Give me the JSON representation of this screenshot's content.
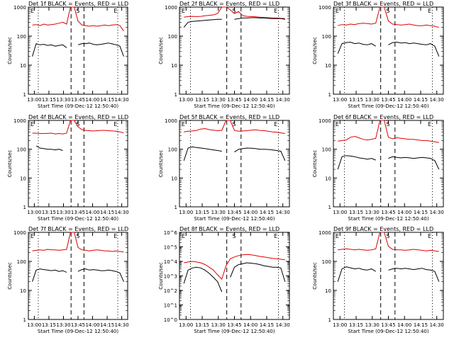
{
  "chart_data": [
    {
      "type": "line",
      "title": "Det 1f BLACK = Events, RED = LLD",
      "xlabel": "Start Time (09-Dec-12 12:50:40)",
      "ylabel": "Counts/sec",
      "yscale": "log",
      "ylim": [
        1,
        1000
      ],
      "yticks": [
        "1",
        "10",
        "100",
        "1000"
      ],
      "xticks": [
        "13:00",
        "13:15",
        "13:30",
        "13:45",
        "14:00",
        "14:15",
        "14:30"
      ],
      "markers": [
        "E",
        "S",
        "E"
      ],
      "series": [
        {
          "name": "LLD",
          "color": "#e00000",
          "values": [
            240,
            250,
            230,
            260,
            240,
            250,
            260,
            280,
            300,
            260,
            1000,
            1000,
            330,
            240,
            230,
            220,
            230,
            220,
            230,
            240,
            230,
            240,
            250,
            230,
            150
          ]
        },
        {
          "name": "Events",
          "color": "#000000",
          "values": [
            20,
            55,
            50,
            52,
            48,
            50,
            45,
            48,
            50,
            40,
            null,
            null,
            50,
            55,
            55,
            58,
            52,
            50,
            52,
            55,
            58,
            54,
            50,
            45,
            20
          ]
        }
      ]
    },
    {
      "type": "line",
      "title": "Det 2f BLACK = Events, RED = LLD",
      "xlabel": "Start Time (09-Dec-12 12:50:40)",
      "ylabel": "Counts/sec",
      "yscale": "log",
      "ylim": [
        1,
        1000
      ],
      "yticks": [
        "1",
        "10",
        "100",
        "1000"
      ],
      "xticks": [
        "13:00",
        "13:15",
        "13:30",
        "13:45",
        "14:00",
        "14:15",
        "14:30"
      ],
      "markers": [
        "E",
        "S",
        "E"
      ],
      "series": [
        {
          "name": "LLD",
          "color": "#e00000",
          "values": [
            450,
            470,
            480,
            470,
            480,
            500,
            520,
            540,
            600,
            1000,
            1000,
            800,
            600,
            700,
            500,
            480,
            470,
            460,
            450,
            440,
            430,
            420,
            420,
            410,
            400
          ]
        },
        {
          "name": "Events",
          "color": "#000000",
          "values": [
            200,
            300,
            320,
            330,
            340,
            350,
            360,
            370,
            380,
            380,
            null,
            null,
            380,
            400,
            420,
            420,
            430,
            430,
            420,
            420,
            410,
            400,
            400,
            400,
            380
          ]
        }
      ]
    },
    {
      "type": "line",
      "title": "Det 3f BLACK = Events, RED = LLD",
      "xlabel": "Start Time (09-Dec-12 12:50:40)",
      "ylabel": "Counts/sec",
      "yscale": "log",
      "ylim": [
        1,
        1000
      ],
      "yticks": [
        "1",
        "10",
        "100",
        "1000"
      ],
      "xticks": [
        "13:00",
        "13:15",
        "13:30",
        "13:45",
        "14:00",
        "14:15",
        "14:30"
      ],
      "markers": [
        "E",
        "S",
        "E"
      ],
      "series": [
        {
          "name": "LLD",
          "color": "#e00000",
          "values": [
            230,
            250,
            240,
            260,
            250,
            270,
            280,
            270,
            260,
            280,
            1000,
            1000,
            330,
            260,
            250,
            240,
            250,
            260,
            240,
            230,
            230,
            240,
            230,
            220,
            200
          ]
        },
        {
          "name": "Events",
          "color": "#000000",
          "values": [
            25,
            55,
            60,
            62,
            55,
            58,
            52,
            50,
            55,
            45,
            null,
            null,
            50,
            60,
            62,
            58,
            60,
            55,
            58,
            55,
            52,
            50,
            55,
            45,
            20
          ]
        }
      ]
    },
    {
      "type": "line",
      "title": "Det 4f BLACK = Events, RED = LLD",
      "xlabel": "Start Time (09-Dec-12 12:50:40)",
      "ylabel": "Counts/sec",
      "yscale": "log",
      "ylim": [
        1,
        1000
      ],
      "yticks": [
        "1",
        "10",
        "100",
        "1000"
      ],
      "xticks": [
        "13:00",
        "13:15",
        "13:30",
        "13:45",
        "14:00",
        "14:15",
        "14:30"
      ],
      "markers": [
        "E",
        "S",
        "E"
      ],
      "series": [
        {
          "name": "LLD",
          "color": "#e00000",
          "values": [
            360,
            360,
            350,
            350,
            355,
            360,
            340,
            350,
            340,
            360,
            1000,
            1000,
            600,
            480,
            450,
            440,
            430,
            440,
            450,
            450,
            440,
            430,
            420,
            400,
            370
          ]
        },
        {
          "name": "Events",
          "color": "#000000",
          "values": [
            null,
            130,
            110,
            105,
            100,
            100,
            95,
            100,
            90,
            null,
            null,
            null,
            null,
            null,
            null,
            null,
            null,
            null,
            null,
            null,
            null,
            null,
            null,
            null,
            null
          ]
        }
      ]
    },
    {
      "type": "line",
      "title": "Det 5f BLACK = Events, RED = LLD",
      "xlabel": "Start Time (09-Dec-12 12:50:40)",
      "ylabel": "Counts/sec",
      "yscale": "log",
      "ylim": [
        1,
        1000
      ],
      "yticks": [
        "1",
        "10",
        "100",
        "1000"
      ],
      "xticks": [
        "13:00",
        "13:15",
        "13:30",
        "13:45",
        "14:00",
        "14:15",
        "14:30"
      ],
      "markers": [
        "E",
        "S",
        "E"
      ],
      "series": [
        {
          "name": "LLD",
          "color": "#e00000",
          "values": [
            400,
            420,
            430,
            450,
            500,
            520,
            480,
            460,
            440,
            450,
            1000,
            1000,
            450,
            420,
            430,
            440,
            460,
            470,
            450,
            440,
            420,
            400,
            390,
            370,
            350
          ]
        },
        {
          "name": "Events",
          "color": "#000000",
          "values": [
            40,
            110,
            120,
            115,
            110,
            105,
            100,
            95,
            90,
            85,
            null,
            null,
            80,
            100,
            105,
            110,
            108,
            105,
            100,
            100,
            98,
            95,
            90,
            85,
            40
          ]
        }
      ]
    },
    {
      "type": "line",
      "title": "Det 6f BLACK = Events, RED = LLD",
      "xlabel": "Start Time (09-Dec-12 12:50:40)",
      "ylabel": "Counts/sec",
      "yscale": "log",
      "ylim": [
        1,
        1000
      ],
      "yticks": [
        "1",
        "10",
        "100",
        "1000"
      ],
      "xticks": [
        "13:00",
        "13:15",
        "13:30",
        "13:45",
        "14:00",
        "14:15",
        "14:30"
      ],
      "markers": [
        "E",
        "S",
        "E"
      ],
      "series": [
        {
          "name": "LLD",
          "color": "#e00000",
          "values": [
            190,
            200,
            210,
            260,
            280,
            250,
            220,
            210,
            220,
            240,
            1000,
            1000,
            260,
            230,
            250,
            240,
            230,
            220,
            220,
            210,
            200,
            200,
            190,
            180,
            170
          ]
        },
        {
          "name": "Events",
          "color": "#000000",
          "values": [
            20,
            55,
            60,
            58,
            55,
            50,
            48,
            45,
            48,
            42,
            null,
            null,
            48,
            55,
            52,
            50,
            52,
            50,
            48,
            50,
            52,
            50,
            48,
            40,
            20
          ]
        }
      ]
    },
    {
      "type": "line",
      "title": "Det 7f BLACK = Events, RED = LLD",
      "xlabel": "Start Time (09-Dec-12 12:50:40)",
      "ylabel": "Counts/sec",
      "yscale": "log",
      "ylim": [
        1,
        1000
      ],
      "yticks": [
        "1",
        "10",
        "100",
        "1000"
      ],
      "xticks": [
        "13:00",
        "13:15",
        "13:30",
        "13:45",
        "14:00",
        "14:15",
        "14:30"
      ],
      "markers": [
        "E",
        "S",
        "E"
      ],
      "series": [
        {
          "name": "LLD",
          "color": "#e00000",
          "values": [
            230,
            240,
            250,
            240,
            260,
            250,
            250,
            240,
            250,
            260,
            1000,
            1000,
            300,
            250,
            240,
            230,
            240,
            250,
            240,
            230,
            230,
            220,
            230,
            220,
            210
          ]
        },
        {
          "name": "Events",
          "color": "#000000",
          "values": [
            20,
            50,
            55,
            52,
            50,
            48,
            50,
            45,
            48,
            42,
            null,
            null,
            45,
            52,
            55,
            50,
            52,
            50,
            48,
            48,
            50,
            48,
            45,
            40,
            20
          ]
        }
      ]
    },
    {
      "type": "line",
      "title": "Det 8f BLACK = Events, RED = LLD",
      "xlabel": "Start Time (09-Dec-12 12:50:40)",
      "ylabel": "Counts/sec",
      "yscale": "log",
      "ylim": [
        1,
        1000000
      ],
      "yticks": [
        "10^0",
        "10^1",
        "10^2",
        "10^3",
        "10^4",
        "10^5",
        "10^6"
      ],
      "xticks": [
        "13:00",
        "13:15",
        "13:30",
        "13:45",
        "14:00",
        "14:15",
        "14:30"
      ],
      "markers": [
        "E",
        "S",
        "E"
      ],
      "series": [
        {
          "name": "LLD",
          "color": "#e00000",
          "values": [
            8000,
            9000,
            10000,
            9000,
            8000,
            6000,
            4000,
            2500,
            1200,
            600,
            5000,
            15000,
            20000,
            25000,
            28000,
            30000,
            28000,
            25000,
            22000,
            20000,
            18000,
            16000,
            15000,
            14000,
            13000
          ]
        },
        {
          "name": "Events",
          "color": "#000000",
          "values": [
            300,
            2500,
            3500,
            4000,
            3500,
            2500,
            1500,
            800,
            400,
            80,
            null,
            800,
            4000,
            6000,
            7000,
            8000,
            7500,
            7000,
            6000,
            5000,
            4500,
            4000,
            4000,
            3500,
            400
          ]
        }
      ]
    },
    {
      "type": "line",
      "title": "Det 9f BLACK = Events, RED = LLD",
      "xlabel": "Start Time (09-Dec-12 12:50:40)",
      "ylabel": "Counts/sec",
      "yscale": "log",
      "ylim": [
        1,
        1000
      ],
      "yticks": [
        "1",
        "10",
        "100",
        "1000"
      ],
      "xticks": [
        "13:00",
        "13:15",
        "13:30",
        "13:45",
        "14:00",
        "14:15",
        "14:30"
      ],
      "markers": [
        "E",
        "S",
        "E"
      ],
      "series": [
        {
          "name": "LLD",
          "color": "#e00000",
          "values": [
            250,
            260,
            270,
            260,
            250,
            260,
            250,
            240,
            250,
            270,
            1000,
            1000,
            330,
            260,
            250,
            250,
            240,
            250,
            260,
            250,
            240,
            230,
            240,
            230,
            220
          ]
        },
        {
          "name": "Events",
          "color": "#000000",
          "values": [
            20,
            55,
            65,
            60,
            55,
            58,
            52,
            50,
            55,
            45,
            null,
            null,
            50,
            55,
            58,
            55,
            58,
            55,
            52,
            55,
            58,
            52,
            50,
            45,
            20
          ]
        }
      ]
    }
  ]
}
